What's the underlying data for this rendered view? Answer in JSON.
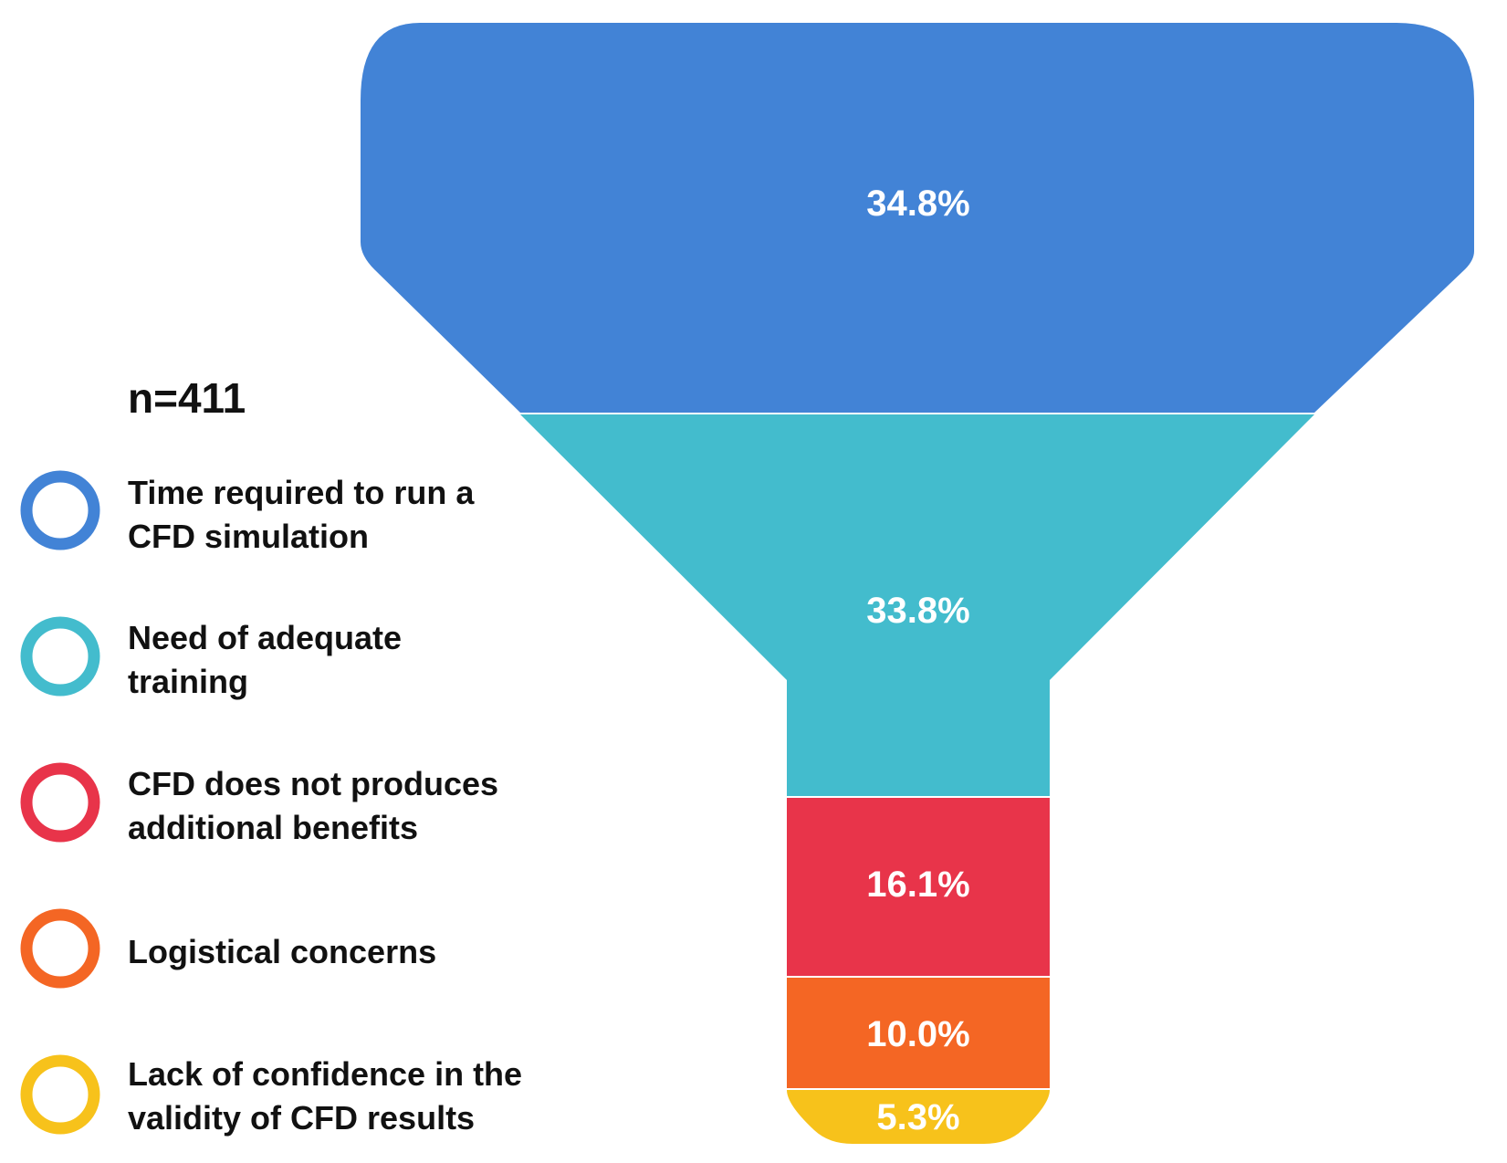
{
  "chart_data": {
    "type": "funnel",
    "sample_size_label": "n=411",
    "categories": [
      "Time required to run a CFD simulation",
      "Need of adequate training",
      "CFD does not produces additional benefits",
      "Logistical concerns",
      "Lack of confidence in the validity of CFD results"
    ],
    "values": [
      34.8,
      33.8,
      16.1,
      10.0,
      5.3
    ],
    "value_labels": [
      "34.8%",
      "33.8%",
      "16.1%",
      "10.0%",
      "5.3%"
    ],
    "legend": {
      "placement": "left",
      "entries": [
        {
          "lines": [
            "Time required to run a",
            "CFD simulation"
          ]
        },
        {
          "lines": [
            "Need of adequate",
            "training"
          ]
        },
        {
          "lines": [
            "CFD does not produces",
            "additional benefits"
          ]
        },
        {
          "lines": [
            "Logistical concerns"
          ]
        },
        {
          "lines": [
            "Lack of confidence in the",
            "validity of CFD results"
          ]
        }
      ]
    },
    "colors": [
      "#4283d6",
      "#43bccd",
      "#e8344a",
      "#f46624",
      "#f7c21b"
    ]
  }
}
